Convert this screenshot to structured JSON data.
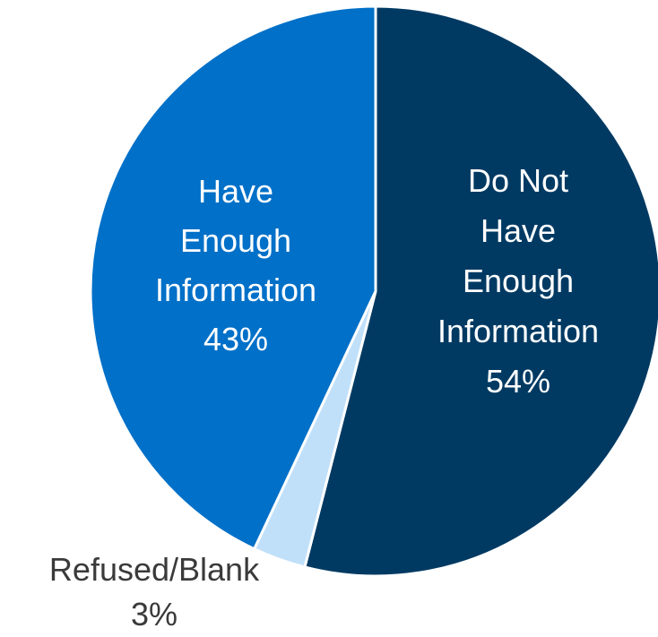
{
  "chart_data": {
    "type": "pie",
    "slices": [
      {
        "label": [
          "Do Not",
          "Have",
          "Enough",
          "Information"
        ],
        "value": 54,
        "value_text": "54%",
        "color": "#003a63"
      },
      {
        "label": [
          "Refused/Blank"
        ],
        "value": 3,
        "value_text": "3%",
        "color": "#c0e0fa"
      },
      {
        "label": [
          "Have",
          "Enough",
          "Information"
        ],
        "value": 43,
        "value_text": "43%",
        "color": "#0070c8"
      }
    ],
    "start_angle_deg": 0,
    "direction": "clockwise",
    "legend": "none",
    "label_colors": {
      "inside": "#ffffff",
      "outside": "#3a3a3a"
    }
  }
}
